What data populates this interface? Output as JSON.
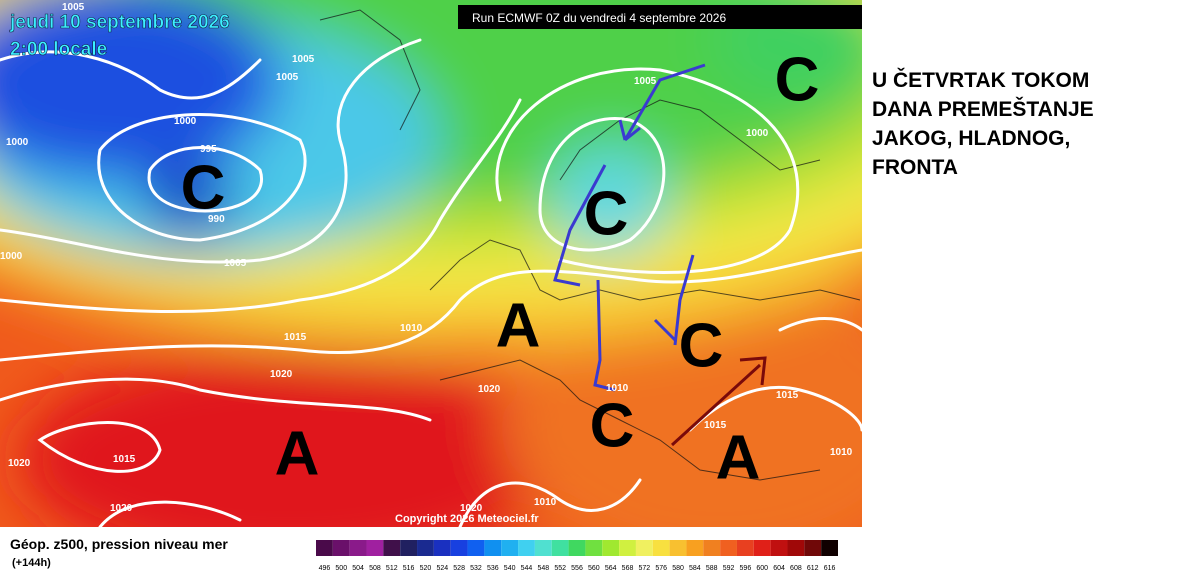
{
  "header": {
    "date": "jeudi 10 septembre 2026",
    "time": "2:00 locale",
    "run": "Run ECMWF 0Z du vendredi 4 septembre 2026"
  },
  "map": {
    "isobar_labels": [
      "1005",
      "1005",
      "1005",
      "1000",
      "1000",
      "995",
      "990",
      "1000",
      "1005",
      "1005",
      "1000",
      "1010",
      "1015",
      "1020",
      "1020",
      "1015",
      "1020",
      "1020",
      "1020",
      "1010",
      "1010",
      "1015",
      "1015",
      "1010"
    ],
    "centers": [
      "C",
      "C",
      "C",
      "A",
      "C",
      "C",
      "A",
      "A"
    ],
    "copyright": "Copyright 2026 Meteociel.fr"
  },
  "legend": {
    "title": "Géop. z500, pression niveau mer",
    "lead_time": "(+144h)",
    "scale": [
      496,
      500,
      504,
      508,
      512,
      516,
      520,
      524,
      528,
      532,
      536,
      540,
      544,
      548,
      552,
      556,
      560,
      564,
      568,
      572,
      576,
      580,
      584,
      588,
      592,
      596,
      600,
      604,
      608,
      612,
      616
    ],
    "colors": [
      "#4a0a4a",
      "#6a106a",
      "#8a1a8a",
      "#a020a0",
      "#40104a",
      "#202060",
      "#1a2a90",
      "#1a30c0",
      "#1840e0",
      "#1060f0",
      "#1090f0",
      "#20b0f0",
      "#40d0f0",
      "#50e0d0",
      "#40e0a0",
      "#40d860",
      "#70e040",
      "#a0e830",
      "#d0f040",
      "#f0f060",
      "#f8e040",
      "#f8c030",
      "#f8a020",
      "#f08020",
      "#f06020",
      "#e84020",
      "#e02018",
      "#c01010",
      "#a00808",
      "#700808",
      "#100000"
    ]
  },
  "note": {
    "lines": [
      "U ČETVRTAK TOKOM",
      "DANA PREMEŠTANJE",
      "JAKOG, HLADNOG,",
      "FRONTA"
    ]
  }
}
